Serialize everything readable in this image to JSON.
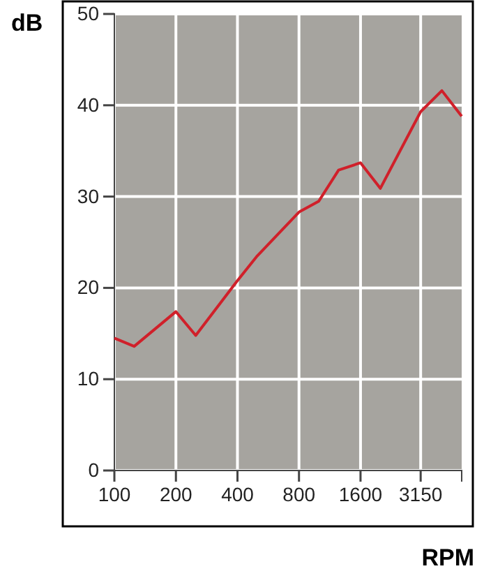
{
  "chart_data": {
    "type": "line",
    "ylabel": "dB",
    "xlabel": "RPM",
    "log": "x",
    "x": [
      100,
      125,
      200,
      250,
      400,
      500,
      800,
      1000,
      1250,
      1600,
      2000,
      3150,
      4000,
      5000
    ],
    "series": [
      {
        "color": "#d0202a",
        "values": [
          14.5,
          13.6,
          17.4,
          14.8,
          20.8,
          23.5,
          28.3,
          29.5,
          32.9,
          33.7,
          30.9,
          39.3,
          41.6,
          38.8
        ]
      }
    ],
    "xlim": [
      100,
      5000
    ],
    "xticks": [
      100,
      200,
      400,
      800,
      1600,
      3150
    ],
    "ylim": [
      0,
      50
    ],
    "yticks": [
      0,
      10,
      20,
      30,
      40,
      50
    ],
    "grid": true,
    "marker": "none",
    "line_style": "solid"
  }
}
